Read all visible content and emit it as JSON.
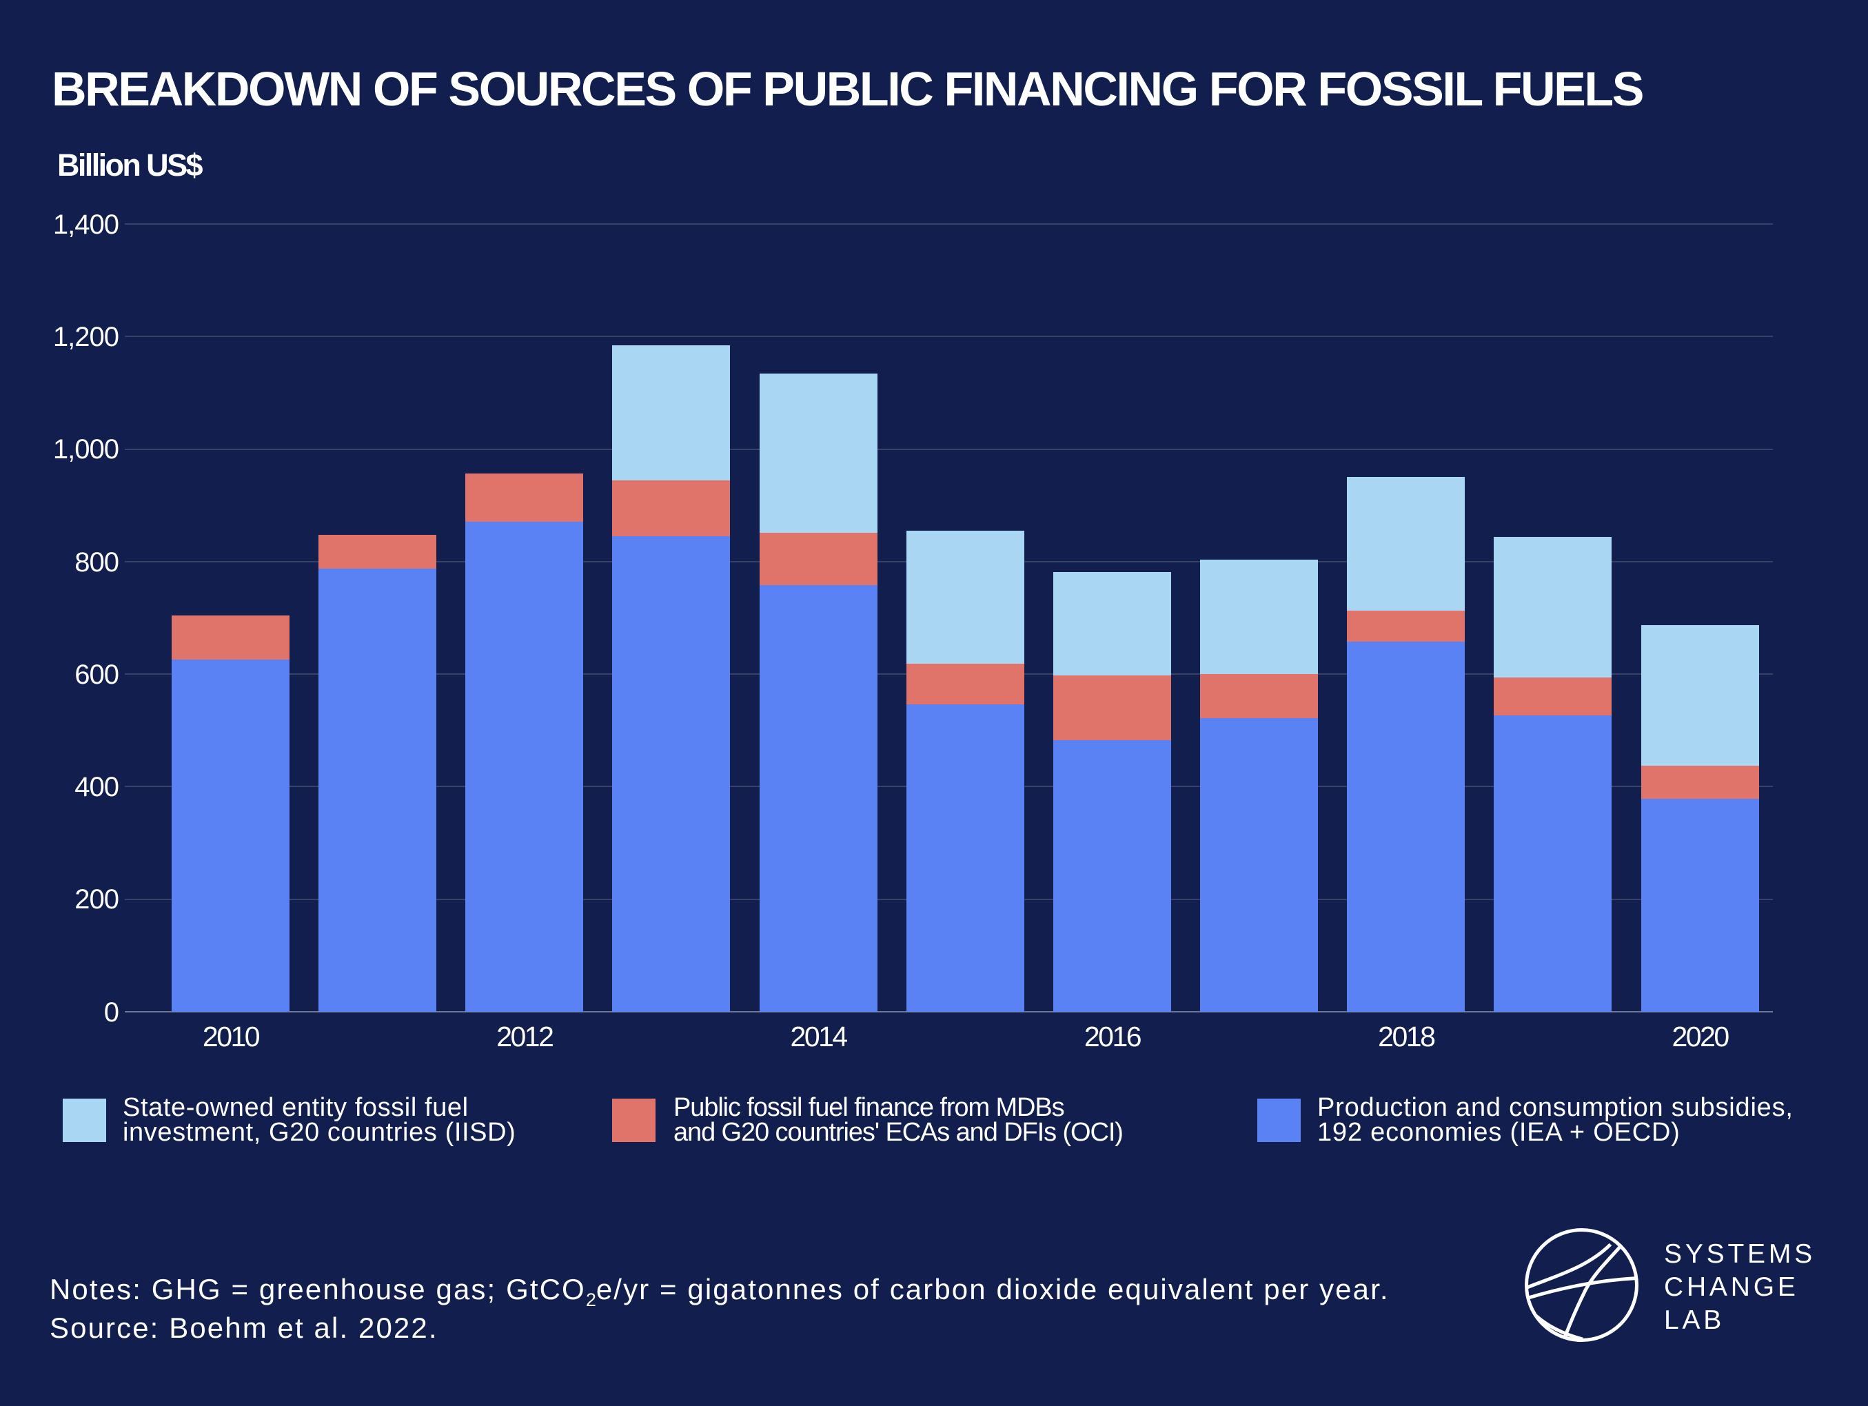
{
  "title": "BREAKDOWN OF SOURCES OF PUBLIC FINANCING FOR FOSSIL FUELS",
  "y_axis_title": "Billion US$",
  "colors": {
    "background": "#121e4d",
    "subsidies_blue": "#5b82f5",
    "finance_red": "#e0746b",
    "state_owned_lightblue": "#a9d7f3",
    "gridline": "rgba(255,255,255,0.16)",
    "axis_line": "rgba(255,255,255,0.42)",
    "text": "#ffffff"
  },
  "chart_data": {
    "type": "bar",
    "stacked": true,
    "title": "BREAKDOWN OF SOURCES OF PUBLIC FINANCING FOR FOSSIL FUELS",
    "xlabel": "",
    "ylabel": "Billion US$",
    "ylim": [
      0,
      1400
    ],
    "grid": true,
    "legend_position": "bottom",
    "categories": [
      "2010",
      "2011",
      "2012",
      "2013",
      "2014",
      "2015",
      "2016",
      "2017",
      "2018",
      "2019",
      "2020"
    ],
    "x_tick_labels": [
      "2010",
      "2012",
      "2014",
      "2016",
      "2018",
      "2020"
    ],
    "y_tick_labels": [
      "0",
      "200",
      "400",
      "600",
      "800",
      "1,000",
      "1,200",
      "1,400"
    ],
    "y_tick_values": [
      0,
      200,
      400,
      600,
      800,
      1000,
      1200,
      1400
    ],
    "series": [
      {
        "name": "Production and consumption subsidies, 192 economies (IEA + OECD)",
        "color": "#5b82f5",
        "values": [
          626,
          787,
          871,
          845,
          758,
          546,
          482,
          522,
          658,
          527,
          378
        ]
      },
      {
        "name": "Public fossil fuel finance from MDBs and G20 countries' ECAs and DFIs (OCI)",
        "color": "#e0746b",
        "values": [
          78,
          60,
          86,
          99,
          93,
          72,
          116,
          78,
          55,
          67,
          59
        ]
      },
      {
        "name": "State-owned entity fossil fuel investment, G20 countries (IISD)",
        "color": "#a9d7f3",
        "values": [
          0,
          0,
          0,
          240,
          283,
          237,
          183,
          204,
          238,
          250,
          250
        ]
      }
    ]
  },
  "legend": {
    "items": [
      {
        "color": "#a9d7f3",
        "line1": "State-owned entity fossil fuel",
        "line2": "investment, G20 countries (IISD)"
      },
      {
        "color": "#e0746b",
        "line1": "Public fossil fuel finance from MDBs",
        "line2": "and G20 countries' ECAs and DFIs (OCI)"
      },
      {
        "color": "#5b82f5",
        "line1": "Production and consumption subsidies,",
        "line2": "192 economies (IEA + OECD)"
      }
    ]
  },
  "notes": {
    "line1_part1": "Notes: GHG = greenhouse gas; GtCO",
    "line1_sub": "2",
    "line1_part2": "e/yr = gigatonnes of carbon dioxide equivalent per year.",
    "line2": "Source: Boehm et al. 2022."
  },
  "logo": {
    "name": "Systems Change Lab",
    "text_lines": [
      "SYSTEMS",
      "CHANGE",
      "LAB"
    ]
  }
}
